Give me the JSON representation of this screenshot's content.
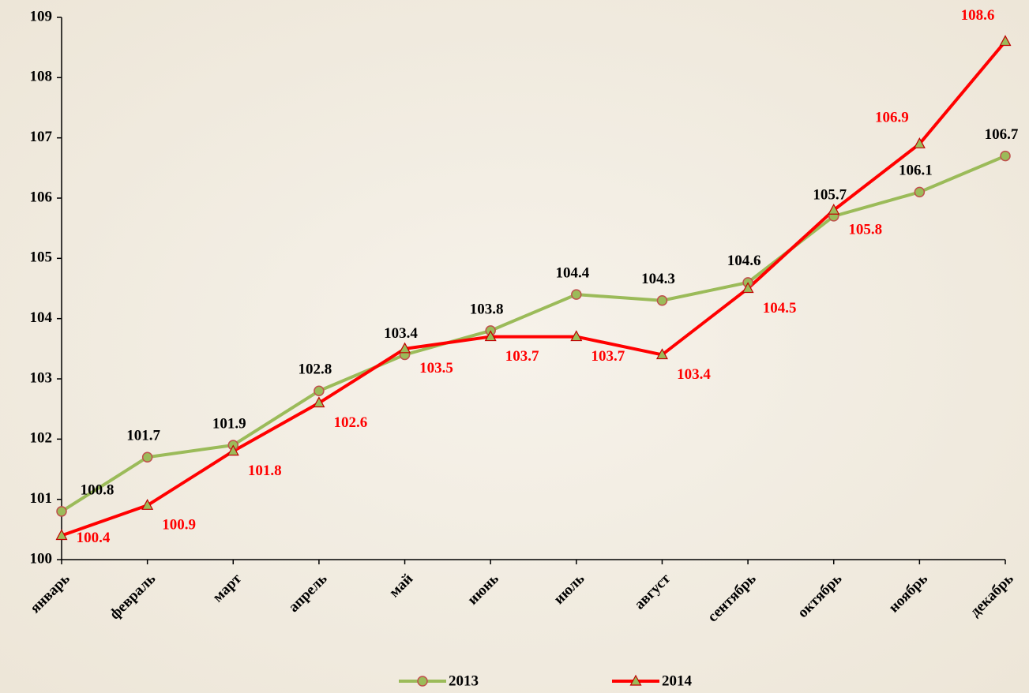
{
  "chart_data": {
    "type": "line",
    "categories": [
      "январь",
      "февраль",
      "март",
      "апрель",
      "май",
      "июнь",
      "июль",
      "август",
      "сентябрь",
      "октябрь",
      "ноябрь",
      "декабрь"
    ],
    "series": [
      {
        "name": "2013",
        "color": "#9bbb59",
        "label_color": "#000000",
        "marker": "circle",
        "marker_fill": "#9bbb59",
        "marker_stroke": "#c0504d",
        "values": [
          100.8,
          101.7,
          101.9,
          102.8,
          103.4,
          103.8,
          104.4,
          104.3,
          104.6,
          105.7,
          106.1,
          106.7
        ]
      },
      {
        "name": "2014",
        "color": "#ff0000",
        "label_color": "#ff0000",
        "marker": "triangle",
        "marker_fill": "#9bbb59",
        "marker_stroke": "#c00000",
        "values": [
          100.4,
          100.9,
          101.8,
          102.6,
          103.5,
          103.7,
          103.7,
          103.4,
          104.5,
          105.8,
          106.9,
          108.6
        ]
      }
    ],
    "ylim": [
      100,
      109
    ],
    "yticks": [
      100,
      101,
      102,
      103,
      104,
      105,
      106,
      107,
      108,
      109
    ],
    "grid": false,
    "legend": "bottom"
  }
}
